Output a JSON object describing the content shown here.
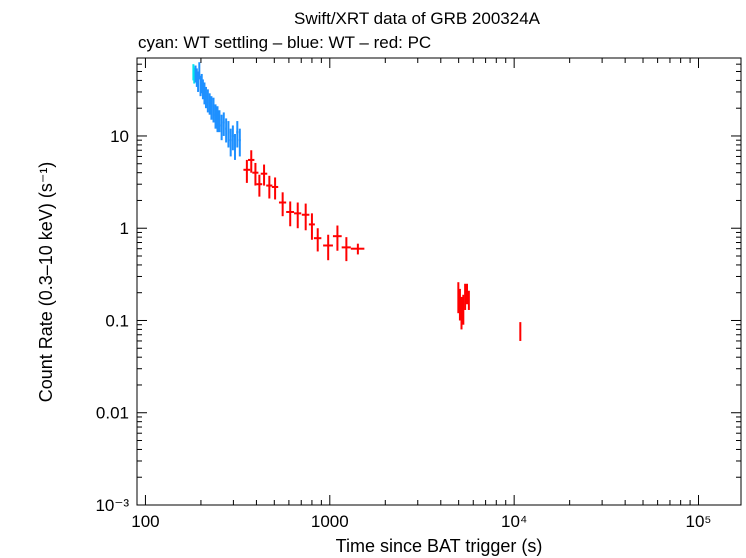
{
  "chart_data": {
    "type": "scatter",
    "title": "Swift/XRT data of GRB 200324A",
    "subtitle": "cyan: WT settling – blue: WT – red: PC",
    "xlabel": "Time since BAT trigger (s)",
    "ylabel": "Count Rate (0.3–10 keV) (s⁻¹)",
    "xscale": "log",
    "yscale": "log",
    "xlim": [
      90,
      170000
    ],
    "ylim": [
      0.001,
      70
    ],
    "x_ticks": [
      {
        "value": 100,
        "label": "100"
      },
      {
        "value": 1000,
        "label": "1000"
      },
      {
        "value": 10000,
        "label": "10⁴"
      },
      {
        "value": 100000,
        "label": "10⁵"
      }
    ],
    "y_ticks": [
      {
        "value": 0.001,
        "label": "10⁻³"
      },
      {
        "value": 0.01,
        "label": "0.01"
      },
      {
        "value": 0.1,
        "label": "0.1"
      },
      {
        "value": 1,
        "label": "1"
      },
      {
        "value": 10,
        "label": "10"
      }
    ],
    "colors": {
      "wt_settling": "#00e5ee",
      "wt": "#1e90ff",
      "pc": "#ff0000"
    },
    "series": [
      {
        "key": "wt_settling",
        "points": [
          {
            "x": 182,
            "y": 50,
            "xerr": [
              1,
              1
            ],
            "yerr": [
              10,
              10
            ]
          },
          {
            "x": 184,
            "y": 46,
            "xerr": [
              1,
              1
            ],
            "yerr": [
              9,
              9
            ]
          }
        ]
      },
      {
        "key": "wt",
        "points": [
          {
            "x": 187,
            "y": 48,
            "xerr": [
              1.5,
              1.5
            ],
            "yerr": [
              10,
              10
            ]
          },
          {
            "x": 190,
            "y": 44,
            "xerr": [
              1.5,
              1.5
            ],
            "yerr": [
              10,
              10
            ]
          },
          {
            "x": 193,
            "y": 40,
            "xerr": [
              1.5,
              1.5
            ],
            "yerr": [
              10,
              10
            ]
          },
          {
            "x": 196,
            "y": 52,
            "xerr": [
              1.5,
              1.5
            ],
            "yerr": [
              11,
              11
            ]
          },
          {
            "x": 199,
            "y": 36,
            "xerr": [
              1.5,
              1.5
            ],
            "yerr": [
              9,
              9
            ]
          },
          {
            "x": 202,
            "y": 38,
            "xerr": [
              1.5,
              1.5
            ],
            "yerr": [
              9,
              9
            ]
          },
          {
            "x": 205,
            "y": 33,
            "xerr": [
              1.5,
              1.5
            ],
            "yerr": [
              8,
              8
            ]
          },
          {
            "x": 209,
            "y": 30,
            "xerr": [
              2,
              2
            ],
            "yerr": [
              8,
              8
            ]
          },
          {
            "x": 213,
            "y": 27,
            "xerr": [
              2,
              2
            ],
            "yerr": [
              7,
              7
            ]
          },
          {
            "x": 218,
            "y": 25,
            "xerr": [
              2,
              2
            ],
            "yerr": [
              7,
              7
            ]
          },
          {
            "x": 223,
            "y": 23,
            "xerr": [
              2,
              2
            ],
            "yerr": [
              6,
              6
            ]
          },
          {
            "x": 228,
            "y": 21,
            "xerr": [
              2,
              2
            ],
            "yerr": [
              6,
              6
            ]
          },
          {
            "x": 234,
            "y": 20,
            "xerr": [
              2.5,
              2.5
            ],
            "yerr": [
              6,
              6
            ]
          },
          {
            "x": 240,
            "y": 17,
            "xerr": [
              2.5,
              2.5
            ],
            "yerr": [
              5,
              5
            ]
          },
          {
            "x": 246,
            "y": 16,
            "xerr": [
              2.5,
              2.5
            ],
            "yerr": [
              5,
              5
            ]
          },
          {
            "x": 252,
            "y": 15,
            "xerr": [
              2.5,
              2.5
            ],
            "yerr": [
              4,
              4
            ]
          },
          {
            "x": 259,
            "y": 13,
            "xerr": [
              3,
              3
            ],
            "yerr": [
              4,
              4
            ]
          },
          {
            "x": 266,
            "y": 14,
            "xerr": [
              3,
              3
            ],
            "yerr": [
              4,
              4
            ]
          },
          {
            "x": 274,
            "y": 12,
            "xerr": [
              3,
              3
            ],
            "yerr": [
              3.5,
              3.5
            ]
          },
          {
            "x": 282,
            "y": 11,
            "xerr": [
              3,
              3
            ],
            "yerr": [
              3.5,
              3.5
            ]
          },
          {
            "x": 290,
            "y": 9,
            "xerr": [
              3.5,
              3.5
            ],
            "yerr": [
              3,
              3
            ]
          },
          {
            "x": 298,
            "y": 10,
            "xerr": [
              3.5,
              3.5
            ],
            "yerr": [
              3,
              3
            ]
          },
          {
            "x": 306,
            "y": 8,
            "xerr": [
              3.5,
              3.5
            ],
            "yerr": [
              2.5,
              2.5
            ]
          },
          {
            "x": 315,
            "y": 11,
            "xerr": [
              4,
              4
            ],
            "yerr": [
              3.5,
              3.5
            ]
          },
          {
            "x": 325,
            "y": 9,
            "xerr": [
              4,
              4
            ],
            "yerr": [
              3,
              3
            ]
          }
        ]
      },
      {
        "key": "pc",
        "points": [
          {
            "x": 355,
            "y": 4.3,
            "xerr": [
              15,
              15
            ],
            "yerr": [
              1.2,
              1.2
            ]
          },
          {
            "x": 375,
            "y": 5.5,
            "xerr": [
              15,
              15
            ],
            "yerr": [
              1.5,
              1.5
            ]
          },
          {
            "x": 395,
            "y": 4.0,
            "xerr": [
              15,
              15
            ],
            "yerr": [
              1.1,
              1.1
            ]
          },
          {
            "x": 415,
            "y": 3.0,
            "xerr": [
              15,
              15
            ],
            "yerr": [
              0.8,
              0.8
            ]
          },
          {
            "x": 440,
            "y": 3.9,
            "xerr": [
              18,
              18
            ],
            "yerr": [
              1.0,
              1.0
            ]
          },
          {
            "x": 470,
            "y": 2.9,
            "xerr": [
              18,
              18
            ],
            "yerr": [
              0.8,
              0.8
            ]
          },
          {
            "x": 505,
            "y": 2.8,
            "xerr": [
              20,
              20
            ],
            "yerr": [
              0.75,
              0.75
            ]
          },
          {
            "x": 555,
            "y": 1.9,
            "xerr": [
              25,
              25
            ],
            "yerr": [
              0.55,
              0.55
            ]
          },
          {
            "x": 610,
            "y": 1.5,
            "xerr": [
              30,
              30
            ],
            "yerr": [
              0.45,
              0.45
            ]
          },
          {
            "x": 670,
            "y": 1.45,
            "xerr": [
              30,
              30
            ],
            "yerr": [
              0.45,
              0.45
            ]
          },
          {
            "x": 740,
            "y": 1.4,
            "xerr": [
              35,
              35
            ],
            "yerr": [
              0.45,
              0.45
            ]
          },
          {
            "x": 800,
            "y": 1.1,
            "xerr": [
              30,
              30
            ],
            "yerr": [
              0.35,
              0.35
            ]
          },
          {
            "x": 860,
            "y": 0.78,
            "xerr": [
              40,
              40
            ],
            "yerr": [
              0.22,
              0.22
            ]
          },
          {
            "x": 980,
            "y": 0.65,
            "xerr": [
              60,
              60
            ],
            "yerr": [
              0.2,
              0.2
            ]
          },
          {
            "x": 1100,
            "y": 0.82,
            "xerr": [
              60,
              60
            ],
            "yerr": [
              0.25,
              0.25
            ]
          },
          {
            "x": 1230,
            "y": 0.62,
            "xerr": [
              70,
              70
            ],
            "yerr": [
              0.18,
              0.18
            ]
          },
          {
            "x": 1420,
            "y": 0.6,
            "xerr": [
              120,
              120
            ],
            "yerr": [
              0.08,
              0.08
            ]
          },
          {
            "x": 4980,
            "y": 0.19,
            "xerr": [
              40,
              40
            ],
            "yerr": [
              0.07,
              0.07
            ]
          },
          {
            "x": 5080,
            "y": 0.16,
            "xerr": [
              40,
              40
            ],
            "yerr": [
              0.06,
              0.06
            ]
          },
          {
            "x": 5180,
            "y": 0.13,
            "xerr": [
              40,
              40
            ],
            "yerr": [
              0.05,
              0.05
            ]
          },
          {
            "x": 5300,
            "y": 0.14,
            "xerr": [
              40,
              40
            ],
            "yerr": [
              0.05,
              0.05
            ]
          },
          {
            "x": 5420,
            "y": 0.19,
            "xerr": [
              40,
              40
            ],
            "yerr": [
              0.06,
              0.06
            ]
          },
          {
            "x": 5550,
            "y": 0.2,
            "xerr": [
              40,
              40
            ],
            "yerr": [
              0.05,
              0.05
            ]
          },
          {
            "x": 5680,
            "y": 0.17,
            "xerr": [
              40,
              40
            ],
            "yerr": [
              0.04,
              0.04
            ]
          },
          {
            "x": 10800,
            "y": 0.078,
            "xerr": [
              100,
              100
            ],
            "yerr": [
              0.018,
              0.018
            ]
          }
        ]
      }
    ]
  }
}
